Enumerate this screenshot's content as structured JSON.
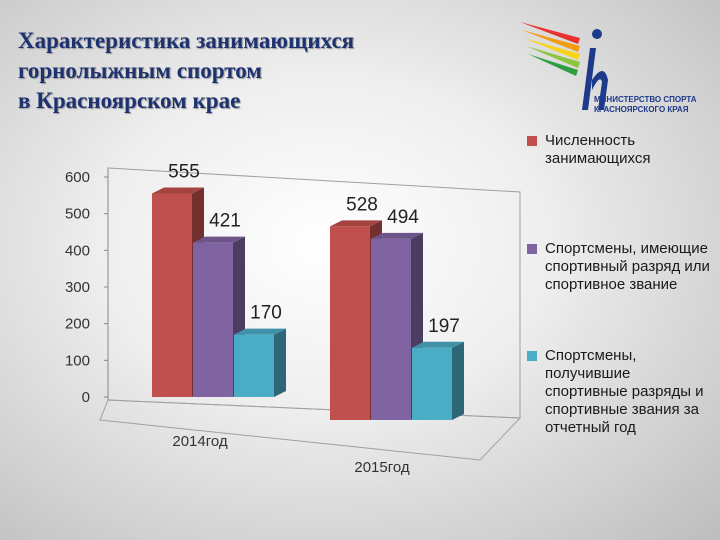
{
  "title_lines": [
    "Характеристика занимающихся",
    "горнолыжным спортом",
    "в Красноярском крае"
  ],
  "logo": {
    "line1": "МИНИСТЕРСТВО СПОРТА",
    "line2": "КРАСНОЯРСКОГО КРАЯ"
  },
  "chart_data": {
    "type": "bar",
    "categories": [
      "2014год",
      "2015год"
    ],
    "series": [
      {
        "name": "Численность занимающихся",
        "color": "#c0504d",
        "values": [
          555,
          528
        ]
      },
      {
        "name": "Спортсмены, имеющие спортивный разряд или спортивное звание",
        "color": "#8064a2",
        "values": [
          421,
          494
        ]
      },
      {
        "name": "Спортсмены, получившие спортивные разряды и спортивные звания за отчетный год",
        "color": "#4bacc6",
        "values": [
          170,
          197
        ]
      }
    ],
    "ylim": [
      0,
      600
    ],
    "yticks": [
      0,
      100,
      200,
      300,
      400,
      500,
      600
    ],
    "legend": "right",
    "data_labels": true
  }
}
